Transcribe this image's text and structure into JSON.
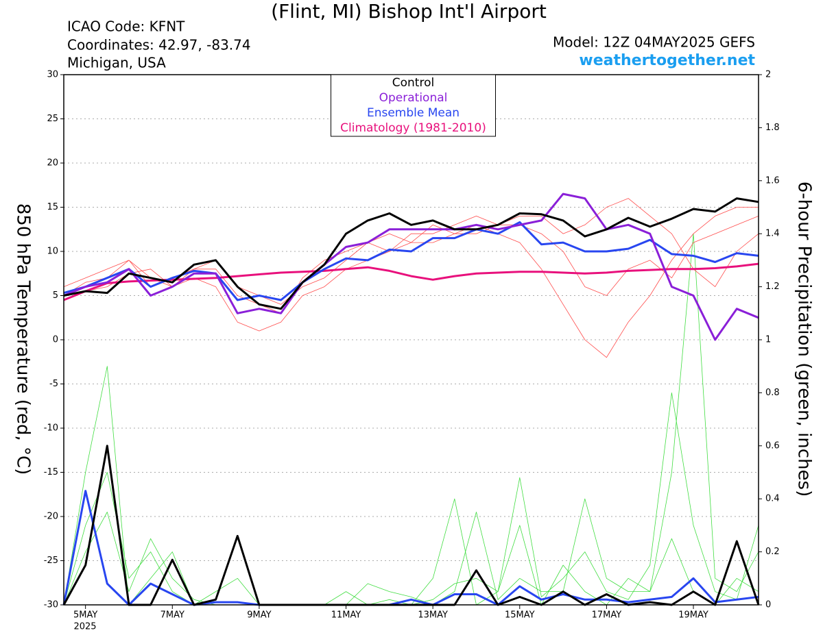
{
  "chart_data": {
    "type": "line",
    "title": "(Flint, MI) Bishop Int'l Airport",
    "info_lines": [
      "ICAO Code: KFNT",
      "Coordinates: 42.97, -83.74",
      "Michigan, USA"
    ],
    "model": "Model: 12Z 04MAY2025 GEFS",
    "site": "weathertogether.net",
    "ylabel": "850 hPa Temperature (red, °C)",
    "y2label": "6-hour Precipitation (green, inches)",
    "x_axis_year": "2025",
    "x": [
      0,
      12,
      24,
      36,
      48,
      60,
      72,
      84,
      96,
      108,
      120,
      132,
      144,
      156,
      168,
      180,
      192,
      204,
      216,
      228,
      240,
      252,
      264,
      276,
      288,
      300,
      312,
      324,
      336,
      348,
      360,
      372,
      384
    ],
    "xlim": [
      0,
      384
    ],
    "xticks": [
      {
        "value": 12,
        "label": "5MAY"
      },
      {
        "value": 60,
        "label": "7MAY"
      },
      {
        "value": 108,
        "label": "9MAY"
      },
      {
        "value": 156,
        "label": "11MAY"
      },
      {
        "value": 204,
        "label": "13MAY"
      },
      {
        "value": 252,
        "label": "15MAY"
      },
      {
        "value": 300,
        "label": "17MAY"
      },
      {
        "value": 348,
        "label": "19MAY"
      }
    ],
    "ylim": [
      -30,
      30
    ],
    "yticks": [
      -30,
      -25,
      -20,
      -15,
      -10,
      -5,
      0,
      5,
      10,
      15,
      20,
      25,
      30
    ],
    "y2lim": [
      0,
      2
    ],
    "y2ticks": [
      0,
      0.2,
      0.4,
      0.6,
      0.8,
      1,
      1.2,
      1.4,
      1.6,
      1.8,
      2
    ],
    "grid": true,
    "legend": "top-center",
    "series": [
      {
        "color": "#40dd40",
        "axis": "y2",
        "line_width": 0.8,
        "values": [
          0,
          0.5,
          0.9,
          0,
          0.1,
          0.2,
          0,
          0,
          0,
          0,
          0,
          0,
          0,
          0,
          0,
          0,
          0,
          0.1,
          0.4,
          0,
          0.05,
          0.3,
          0,
          0.15,
          0.05,
          0,
          0.1,
          0.05,
          0.25,
          0.05,
          0,
          0.1,
          0.05
        ]
      },
      {
        "color": "#40dd40",
        "axis": "y2",
        "line_width": 0.8,
        "values": [
          0,
          0.3,
          0.5,
          0.1,
          0.2,
          0.05,
          0,
          0.05,
          0.1,
          0,
          0,
          0,
          0,
          0,
          0.08,
          0.05,
          0.03,
          0,
          0.05,
          0.35,
          0.02,
          0.1,
          0.05,
          0.05,
          0.4,
          0.1,
          0.05,
          0.05,
          0.5,
          1.4,
          0.1,
          0.05,
          0.2
        ]
      },
      {
        "color": "#40dd40",
        "axis": "y2",
        "line_width": 0.8,
        "values": [
          0,
          0.2,
          0.35,
          0.05,
          0.25,
          0.1,
          0.02,
          0,
          0,
          0,
          0,
          0,
          0,
          0.05,
          0,
          0.02,
          0,
          0.02,
          0.08,
          0.1,
          0.05,
          0.48,
          0.03,
          0.1,
          0.2,
          0.05,
          0.02,
          0.15,
          0.8,
          0.3,
          0.05,
          0.02,
          0.3
        ]
      },
      {
        "color": "#ff4a4a",
        "line_width": 0.8,
        "values": [
          5,
          6.5,
          7,
          9,
          6,
          7,
          8,
          8,
          5,
          4,
          3,
          7,
          9,
          10,
          11,
          12,
          11,
          13,
          12,
          12,
          13,
          13,
          12,
          10,
          6,
          5,
          8,
          9,
          7,
          11,
          12,
          13,
          14
        ]
      },
      {
        "color": "#ff4a4a",
        "line_width": 0.8,
        "values": [
          5,
          5.5,
          6,
          7.5,
          8,
          6,
          7,
          6,
          2,
          1,
          2,
          5,
          6,
          8,
          9,
          10,
          11,
          11,
          12,
          13,
          12,
          11,
          8,
          4,
          0,
          -2,
          2,
          5,
          9,
          12,
          14,
          15,
          15
        ]
      },
      {
        "color": "#ff4a4a",
        "line_width": 0.8,
        "values": [
          6,
          7,
          8,
          9,
          7,
          6,
          8,
          9,
          6,
          5,
          4,
          6,
          7,
          9,
          11,
          10,
          12,
          12,
          13,
          14,
          13,
          14,
          14,
          12,
          13,
          15,
          16,
          14,
          12,
          8,
          6,
          10,
          12
        ]
      },
      {
        "name": "Climatology (1981-2010)",
        "color": "#e8107c",
        "line_width": 3,
        "values": [
          4.5,
          5.5,
          6.4,
          6.6,
          6.7,
          6.8,
          6.9,
          7.0,
          7.2,
          7.4,
          7.6,
          7.7,
          7.8,
          8.0,
          8.2,
          7.8,
          7.2,
          6.8,
          7.2,
          7.5,
          7.6,
          7.7,
          7.7,
          7.6,
          7.5,
          7.6,
          7.8,
          7.9,
          8.0,
          8.0,
          8.1,
          8.3,
          8.6
        ]
      },
      {
        "name": "Ensemble Mean",
        "color": "#2846f0",
        "line_width": 3,
        "values": [
          5.3,
          6,
          7,
          8,
          6,
          7,
          7.8,
          7.5,
          4.5,
          5,
          4.5,
          6.5,
          8,
          9.2,
          9,
          10.2,
          10,
          11.5,
          11.5,
          12.5,
          12,
          13.3,
          10.8,
          11,
          10,
          10,
          10.3,
          11.3,
          9.7,
          9.5,
          8.8,
          9.8,
          9.5
        ]
      },
      {
        "name": "Operational",
        "color": "#8a1fd8",
        "line_width": 3,
        "values": [
          5,
          6,
          6.5,
          8,
          5,
          6,
          7.5,
          7.5,
          3,
          3.5,
          3,
          6.5,
          8.5,
          10.5,
          11,
          12.5,
          12.5,
          12.5,
          12.5,
          13,
          12.5,
          13,
          13.5,
          16.5,
          16,
          12.5,
          13,
          12,
          6,
          5,
          0,
          3.5,
          2.5
        ]
      },
      {
        "name": "Control",
        "color": "#000000",
        "line_width": 3,
        "values": [
          5,
          5.5,
          5.3,
          7.5,
          7,
          6.5,
          8.5,
          9,
          6,
          4,
          3.5,
          6.5,
          8.5,
          12,
          13.5,
          14.3,
          13,
          13.5,
          12.5,
          12.5,
          13,
          14.3,
          14.2,
          13.5,
          11.7,
          12.5,
          13.8,
          12.8,
          13.7,
          14.8,
          14.5,
          16,
          15.6
        ]
      },
      {
        "color": "#2846f0",
        "axis": "y2",
        "line_width": 3,
        "values": [
          0,
          0.43,
          0.08,
          0,
          0.08,
          0.04,
          0,
          0.01,
          0.01,
          0,
          0,
          0,
          0,
          0,
          0,
          0,
          0.02,
          0,
          0.04,
          0.04,
          0,
          0.07,
          0.02,
          0.04,
          0.02,
          0.02,
          0.01,
          0.02,
          0.03,
          0.1,
          0.01,
          0.02,
          0.03
        ]
      },
      {
        "color": "#000000",
        "axis": "y2",
        "line_width": 3,
        "values": [
          0,
          0.15,
          0.6,
          0,
          0,
          0.17,
          0,
          0.02,
          0.26,
          0,
          0,
          0,
          0,
          0,
          0,
          0,
          0,
          0,
          0,
          0.13,
          0,
          0.03,
          0,
          0.05,
          0,
          0.04,
          0,
          0.01,
          0,
          0.05,
          0,
          0.24,
          0
        ]
      }
    ]
  }
}
